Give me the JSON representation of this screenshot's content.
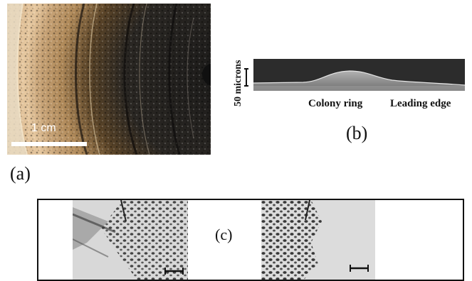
{
  "panel_a": {
    "scale_label": "1 cm",
    "label": "(a)"
  },
  "panel_b": {
    "ylabel": "50 microns",
    "colony_label": "Colony ring",
    "edge_label": "Leading edge",
    "label": "(b)"
  },
  "panel_c": {
    "label": "(c)"
  }
}
